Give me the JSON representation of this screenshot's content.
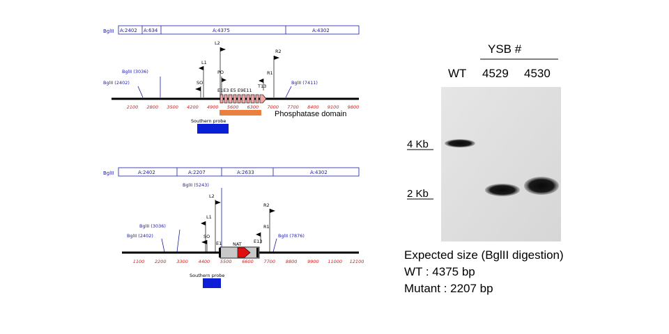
{
  "wt_map": {
    "bglii_label": "BglII",
    "segments": [
      "A:2402",
      "A:634",
      "A:4375",
      "A:4302"
    ],
    "sites": [
      "BglII (3036)",
      "BglII (2402)",
      "BglII (7411)"
    ],
    "primers": [
      "L2",
      "L1",
      "PO",
      "SO",
      "R2",
      "R1",
      "T13"
    ],
    "exons": "E1E3 E5 E9E11",
    "ticks": [
      "2100",
      "2800",
      "3500",
      "4200",
      "4900",
      "5600",
      "6300",
      "7000",
      "7700",
      "8400",
      "9100",
      "9800"
    ],
    "domain_label": "Phosphatase domain",
    "probe_label": "Southern probe"
  },
  "mut_map": {
    "bglii_label": "BglII",
    "segments": [
      "A:2402",
      "A:2207",
      "A:2633",
      "A:4302"
    ],
    "sites": [
      "BglII (5243)",
      "BglII (3036)",
      "BglII (2402)",
      "BglII (7876)"
    ],
    "primers": [
      "L2",
      "L1",
      "SO",
      "R2",
      "R1"
    ],
    "exons": [
      "E1",
      "E13"
    ],
    "cassette_label": "NAT",
    "ticks": [
      "1100",
      "2200",
      "3300",
      "4400",
      "5500",
      "6600",
      "7700",
      "8800",
      "9900",
      "11000",
      "12100"
    ],
    "probe_label": "Southern probe"
  },
  "blot": {
    "header": "YSB #",
    "lanes": [
      "WT",
      "4529",
      "4530"
    ],
    "markers": [
      "4 Kb",
      "2 Kb"
    ]
  },
  "caption": {
    "line1": "Expected size (BglII digestion)",
    "line2": "WT : 4375 bp",
    "line3": "Mutant : 2207 bp"
  },
  "colors": {
    "blue": "#1a1aa8",
    "red": "#d21a1a",
    "orange": "#ea8040",
    "probe": "#0a1fd6",
    "exon": "#f1a5a5",
    "nat": "#e01010"
  }
}
